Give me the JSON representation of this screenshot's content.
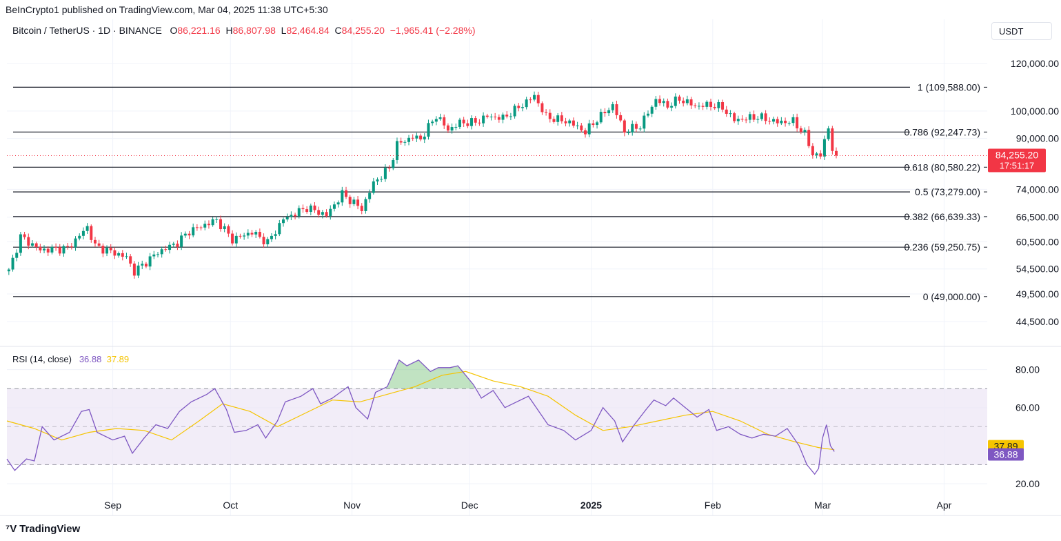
{
  "header": {
    "publish_note": "BeInCrypto1 published on TradingView.com, Mar 04, 2025 11:38 UTC+5:30",
    "symbol": "Bitcoin / TetherUS · 1D · BINANCE",
    "open_label": "O",
    "open_value": "86,221.16",
    "high_label": "H",
    "high_value": "86,807.98",
    "low_label": "L",
    "low_value": "82,464.84",
    "close_label": "C",
    "close_value": "84,255.20",
    "change": "−1,965.41 (−2.28%)",
    "currency_button": "USDT"
  },
  "rsi_legend": {
    "label": "RSI (14, close)",
    "rsi_value": "36.88",
    "ma_value": "37.89"
  },
  "footer": {
    "brand": "TradingView",
    "brand_icon": "tradingview-logo-icon"
  },
  "colors": {
    "up": "#089981",
    "down": "#f23645",
    "rsi": "#7e57c2",
    "rsi_ma": "#f5c400",
    "band": "#ede7f6"
  },
  "chart_data": [
    {
      "type": "candlestick",
      "title": "Bitcoin / TetherUS · 1D · BINANCE",
      "yscale": "log",
      "ylim": [
        41000,
        130000
      ],
      "x_start": "2024-08-05",
      "x_end": "2025-04-12",
      "y_ticks": [
        "120,000.00",
        "100,000.00",
        "90,000.00",
        "74,000.00",
        "66,500.00",
        "60,500.00",
        "54,500.00",
        "49,500.00",
        "44,500.00"
      ],
      "x_ticks": [
        {
          "date": "2024-09-01",
          "label": "Sep"
        },
        {
          "date": "2024-10-01",
          "label": "Oct"
        },
        {
          "date": "2024-11-01",
          "label": "Nov"
        },
        {
          "date": "2024-12-01",
          "label": "Dec"
        },
        {
          "date": "2025-01-01",
          "label": "2025"
        },
        {
          "date": "2025-02-01",
          "label": "Feb"
        },
        {
          "date": "2025-03-01",
          "label": "Mar"
        },
        {
          "date": "2025-04-01",
          "label": "Apr"
        }
      ],
      "fib_levels": [
        {
          "label": "1 (109,588.00)",
          "value": 109588.0
        },
        {
          "label": "0.786 (92,247.73)",
          "value": 92247.73
        },
        {
          "label": "0.618 (80,580.22)",
          "value": 80580.22
        },
        {
          "label": "0.5 (73,279.00)",
          "value": 73279.0
        },
        {
          "label": "0.382 (66,639.33)",
          "value": 66639.33
        },
        {
          "label": "0.236 (59,250.75)",
          "value": 59250.75
        },
        {
          "label": "0 (49,000.00)",
          "value": 49000.0
        }
      ],
      "last_price": {
        "price": 84255.2,
        "label": "84,255.20",
        "countdown": "17:51:17"
      },
      "close_path": [
        [
          "2024-08-05",
          54000
        ],
        [
          "2024-08-08",
          61700
        ],
        [
          "2024-08-13",
          58600
        ],
        [
          "2024-08-20",
          59000
        ],
        [
          "2024-08-25",
          64000
        ],
        [
          "2024-08-27",
          59500
        ],
        [
          "2024-09-04",
          57000
        ],
        [
          "2024-09-06",
          53900
        ],
        [
          "2024-09-12",
          58100
        ],
        [
          "2024-09-17",
          60300
        ],
        [
          "2024-09-20",
          63000
        ],
        [
          "2024-09-27",
          65800
        ],
        [
          "2024-10-01",
          61000
        ],
        [
          "2024-10-06",
          62800
        ],
        [
          "2024-10-10",
          60300
        ],
        [
          "2024-10-14",
          66000
        ],
        [
          "2024-10-20",
          69000
        ],
        [
          "2024-10-25",
          67000
        ],
        [
          "2024-10-29",
          72700
        ],
        [
          "2024-11-03",
          68600
        ],
        [
          "2024-11-06",
          75800
        ],
        [
          "2024-11-10",
          80300
        ],
        [
          "2024-11-12",
          88000
        ],
        [
          "2024-11-16",
          90500
        ],
        [
          "2024-11-18",
          89800
        ],
        [
          "2024-11-22",
          98300
        ],
        [
          "2024-11-25",
          93000
        ],
        [
          "2024-11-28",
          95600
        ],
        [
          "2024-12-02",
          95800
        ],
        [
          "2024-12-05",
          98000
        ],
        [
          "2024-12-09",
          97300
        ],
        [
          "2024-12-13",
          101400
        ],
        [
          "2024-12-17",
          106000
        ],
        [
          "2024-12-20",
          97800
        ],
        [
          "2024-12-26",
          95800
        ],
        [
          "2024-12-30",
          92300
        ],
        [
          "2025-01-02",
          96900
        ],
        [
          "2025-01-06",
          102200
        ],
        [
          "2025-01-09",
          92500
        ],
        [
          "2025-01-13",
          94500
        ],
        [
          "2025-01-17",
          104500
        ],
        [
          "2025-01-20",
          102000
        ],
        [
          "2025-01-23",
          104800
        ],
        [
          "2025-01-27",
          101900
        ],
        [
          "2025-01-31",
          102400
        ],
        [
          "2025-02-03",
          101300
        ],
        [
          "2025-02-06",
          96600
        ],
        [
          "2025-02-12",
          97800
        ],
        [
          "2025-02-17",
          95800
        ],
        [
          "2025-02-21",
          96100
        ],
        [
          "2025-02-24",
          91500
        ],
        [
          "2025-02-26",
          84700
        ],
        [
          "2025-02-28",
          84300
        ],
        [
          "2025-03-02",
          94200
        ],
        [
          "2025-03-03",
          86200
        ],
        [
          "2025-03-04",
          84255
        ]
      ]
    },
    {
      "type": "line",
      "title": "RSI (14, close)",
      "ylim": [
        16,
        90
      ],
      "y_ticks": [
        80,
        60,
        20
      ],
      "bands": {
        "upper": 70,
        "middle": 50,
        "lower": 30
      },
      "series": [
        {
          "name": "RSI",
          "current": 36.88,
          "points": [
            [
              "2024-08-05",
              33
            ],
            [
              "2024-08-07",
              27
            ],
            [
              "2024-08-10",
              33
            ],
            [
              "2024-08-12",
              32
            ],
            [
              "2024-08-14",
              50
            ],
            [
              "2024-08-17",
              43
            ],
            [
              "2024-08-21",
              47
            ],
            [
              "2024-08-24",
              58
            ],
            [
              "2024-08-26",
              59
            ],
            [
              "2024-08-28",
              47
            ],
            [
              "2024-09-01",
              43
            ],
            [
              "2024-09-04",
              45
            ],
            [
              "2024-09-06",
              36
            ],
            [
              "2024-09-09",
              44
            ],
            [
              "2024-09-12",
              51
            ],
            [
              "2024-09-15",
              49
            ],
            [
              "2024-09-18",
              58
            ],
            [
              "2024-09-21",
              63
            ],
            [
              "2024-09-25",
              67
            ],
            [
              "2024-09-27",
              70
            ],
            [
              "2024-09-30",
              59
            ],
            [
              "2024-10-02",
              47
            ],
            [
              "2024-10-05",
              48
            ],
            [
              "2024-10-08",
              51
            ],
            [
              "2024-10-10",
              44
            ],
            [
              "2024-10-13",
              53
            ],
            [
              "2024-10-15",
              63
            ],
            [
              "2024-10-19",
              66
            ],
            [
              "2024-10-22",
              70
            ],
            [
              "2024-10-24",
              62
            ],
            [
              "2024-10-27",
              65
            ],
            [
              "2024-10-29",
              68
            ],
            [
              "2024-10-31",
              71
            ],
            [
              "2024-11-02",
              60
            ],
            [
              "2024-11-05",
              54
            ],
            [
              "2024-11-07",
              68
            ],
            [
              "2024-11-10",
              71
            ],
            [
              "2024-11-13",
              85
            ],
            [
              "2024-11-15",
              82
            ],
            [
              "2024-11-18",
              85
            ],
            [
              "2024-11-21",
              79
            ],
            [
              "2024-11-23",
              81
            ],
            [
              "2024-11-26",
              81
            ],
            [
              "2024-11-28",
              82
            ],
            [
              "2024-11-30",
              77
            ],
            [
              "2024-12-02",
              72
            ],
            [
              "2024-12-04",
              65
            ],
            [
              "2024-12-07",
              69
            ],
            [
              "2024-12-10",
              60
            ],
            [
              "2024-12-13",
              63
            ],
            [
              "2024-12-16",
              66
            ],
            [
              "2024-12-18",
              60
            ],
            [
              "2024-12-21",
              51
            ],
            [
              "2024-12-25",
              48
            ],
            [
              "2024-12-28",
              43
            ],
            [
              "2025-01-01",
              48
            ],
            [
              "2025-01-04",
              60
            ],
            [
              "2025-01-07",
              53
            ],
            [
              "2025-01-09",
              42
            ],
            [
              "2025-01-12",
              51
            ],
            [
              "2025-01-15",
              59
            ],
            [
              "2025-01-17",
              64
            ],
            [
              "2025-01-20",
              61
            ],
            [
              "2025-01-22",
              65
            ],
            [
              "2025-01-25",
              60
            ],
            [
              "2025-01-28",
              55
            ],
            [
              "2025-01-31",
              59
            ],
            [
              "2025-02-02",
              48
            ],
            [
              "2025-02-05",
              50
            ],
            [
              "2025-02-08",
              46
            ],
            [
              "2025-02-11",
              44
            ],
            [
              "2025-02-14",
              46
            ],
            [
              "2025-02-17",
              45
            ],
            [
              "2025-02-20",
              49
            ],
            [
              "2025-02-23",
              40
            ],
            [
              "2025-02-25",
              30
            ],
            [
              "2025-02-27",
              25
            ],
            [
              "2025-02-28",
              28
            ],
            [
              "2025-03-01",
              44
            ],
            [
              "2025-03-02",
              51
            ],
            [
              "2025-03-03",
              40
            ],
            [
              "2025-03-04",
              36.88
            ]
          ]
        },
        {
          "name": "MA",
          "current": 37.89,
          "points": [
            [
              "2024-08-05",
              53
            ],
            [
              "2024-08-12",
              49
            ],
            [
              "2024-08-19",
              43
            ],
            [
              "2024-08-26",
              47
            ],
            [
              "2024-09-02",
              49
            ],
            [
              "2024-09-09",
              48
            ],
            [
              "2024-09-16",
              43
            ],
            [
              "2024-09-23",
              53
            ],
            [
              "2024-09-29",
              62
            ],
            [
              "2024-10-06",
              58
            ],
            [
              "2024-10-13",
              50
            ],
            [
              "2024-10-20",
              57
            ],
            [
              "2024-10-27",
              64
            ],
            [
              "2024-11-03",
              63
            ],
            [
              "2024-11-10",
              67
            ],
            [
              "2024-11-17",
              71
            ],
            [
              "2024-11-24",
              77
            ],
            [
              "2024-11-30",
              79
            ],
            [
              "2024-12-07",
              74
            ],
            [
              "2024-12-14",
              71
            ],
            [
              "2024-12-21",
              66
            ],
            [
              "2024-12-28",
              56
            ],
            [
              "2025-01-04",
              48
            ],
            [
              "2025-01-11",
              50
            ],
            [
              "2025-01-18",
              53
            ],
            [
              "2025-01-25",
              56
            ],
            [
              "2025-02-01",
              58
            ],
            [
              "2025-02-08",
              53
            ],
            [
              "2025-02-15",
              46
            ],
            [
              "2025-02-22",
              42
            ],
            [
              "2025-02-28",
              39
            ],
            [
              "2025-03-04",
              37.89
            ]
          ]
        }
      ]
    }
  ]
}
